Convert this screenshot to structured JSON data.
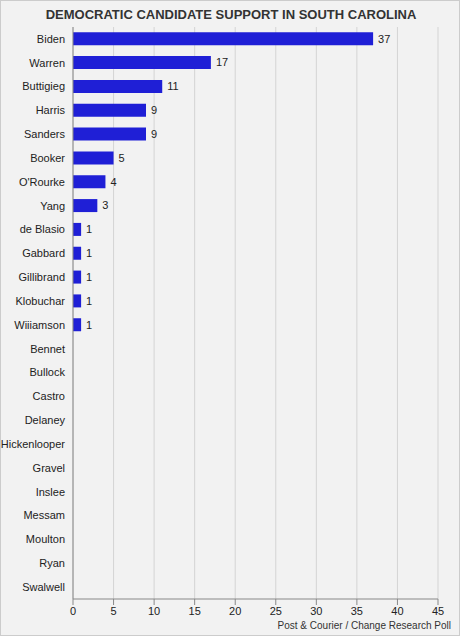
{
  "chart_data": {
    "type": "bar",
    "title": "DEMOCRATIC CANDIDATE SUPPORT IN SOUTH CAROLINA",
    "source": "Post & Courier / Change Research Poll",
    "orientation": "horizontal",
    "categories": [
      "Biden",
      "Warren",
      "Buttigieg",
      "Harris",
      "Sanders",
      "Booker",
      "O'Rourke",
      "Yang",
      "de Blasio",
      "Gabbard",
      "Gillibrand",
      "Klobuchar",
      "Wiiiamson",
      "Bennet",
      "Bullock",
      "Castro",
      "Delaney",
      "Hickenlooper",
      "Gravel",
      "Inslee",
      "Messam",
      "Moulton",
      "Ryan",
      "Swalwell"
    ],
    "values": [
      37,
      17,
      11,
      9,
      9,
      5,
      4,
      3,
      1,
      1,
      1,
      1,
      1,
      0,
      0,
      0,
      0,
      0,
      0,
      0,
      0,
      0,
      0,
      0
    ],
    "color": "#1f1fd6",
    "xlim": [
      0,
      45
    ],
    "xticks": [
      0,
      5,
      10,
      15,
      20,
      25,
      30,
      35,
      40,
      45
    ],
    "grid": true,
    "data_labels": true
  }
}
